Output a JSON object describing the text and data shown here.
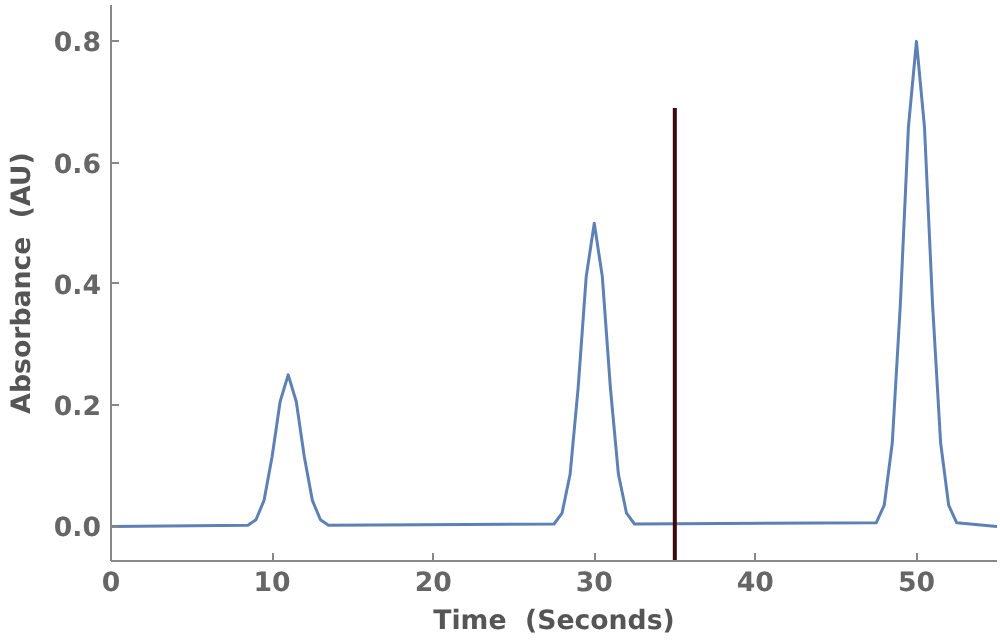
{
  "chart_data": {
    "type": "line",
    "xlabel": "Time  (Seconds)",
    "ylabel": "Absorbance  (AU)",
    "xlim": [
      0,
      55
    ],
    "ylim": [
      -0.057,
      0.86
    ],
    "xticks": [
      0,
      10,
      20,
      30,
      40,
      50
    ],
    "yticks": [
      {
        "value": 0,
        "label": "0.0"
      },
      0.2,
      0.4,
      0.6,
      0.8
    ],
    "grid": false,
    "line_style": "solid",
    "series": [
      {
        "color": "#5e81b5",
        "x": [
          0,
          8.5,
          9,
          9.5,
          10,
          10.5,
          11,
          11.5,
          12,
          12.5,
          13,
          13.5,
          27.5,
          28,
          28.5,
          29,
          29.5,
          30,
          30.5,
          31,
          31.5,
          32,
          32.5,
          47.5,
          48,
          48.5,
          49,
          49.5,
          50,
          50.5,
          51,
          51.5,
          52,
          52.5,
          55
        ],
        "values": [
          0,
          0.002,
          0.011,
          0.043,
          0.115,
          0.206,
          0.25,
          0.206,
          0.115,
          0.043,
          0.011,
          0.002,
          0.004,
          0.022,
          0.086,
          0.229,
          0.412,
          0.5,
          0.412,
          0.229,
          0.086,
          0.022,
          0.004,
          0.006,
          0.035,
          0.138,
          0.366,
          0.658,
          0.8,
          0.658,
          0.366,
          0.138,
          0.035,
          0.006,
          0
        ]
      },
      {
        "color": "#3b0a0a",
        "x": [
          35,
          35
        ],
        "values": [
          -0.057,
          0.69
        ]
      }
    ]
  }
}
